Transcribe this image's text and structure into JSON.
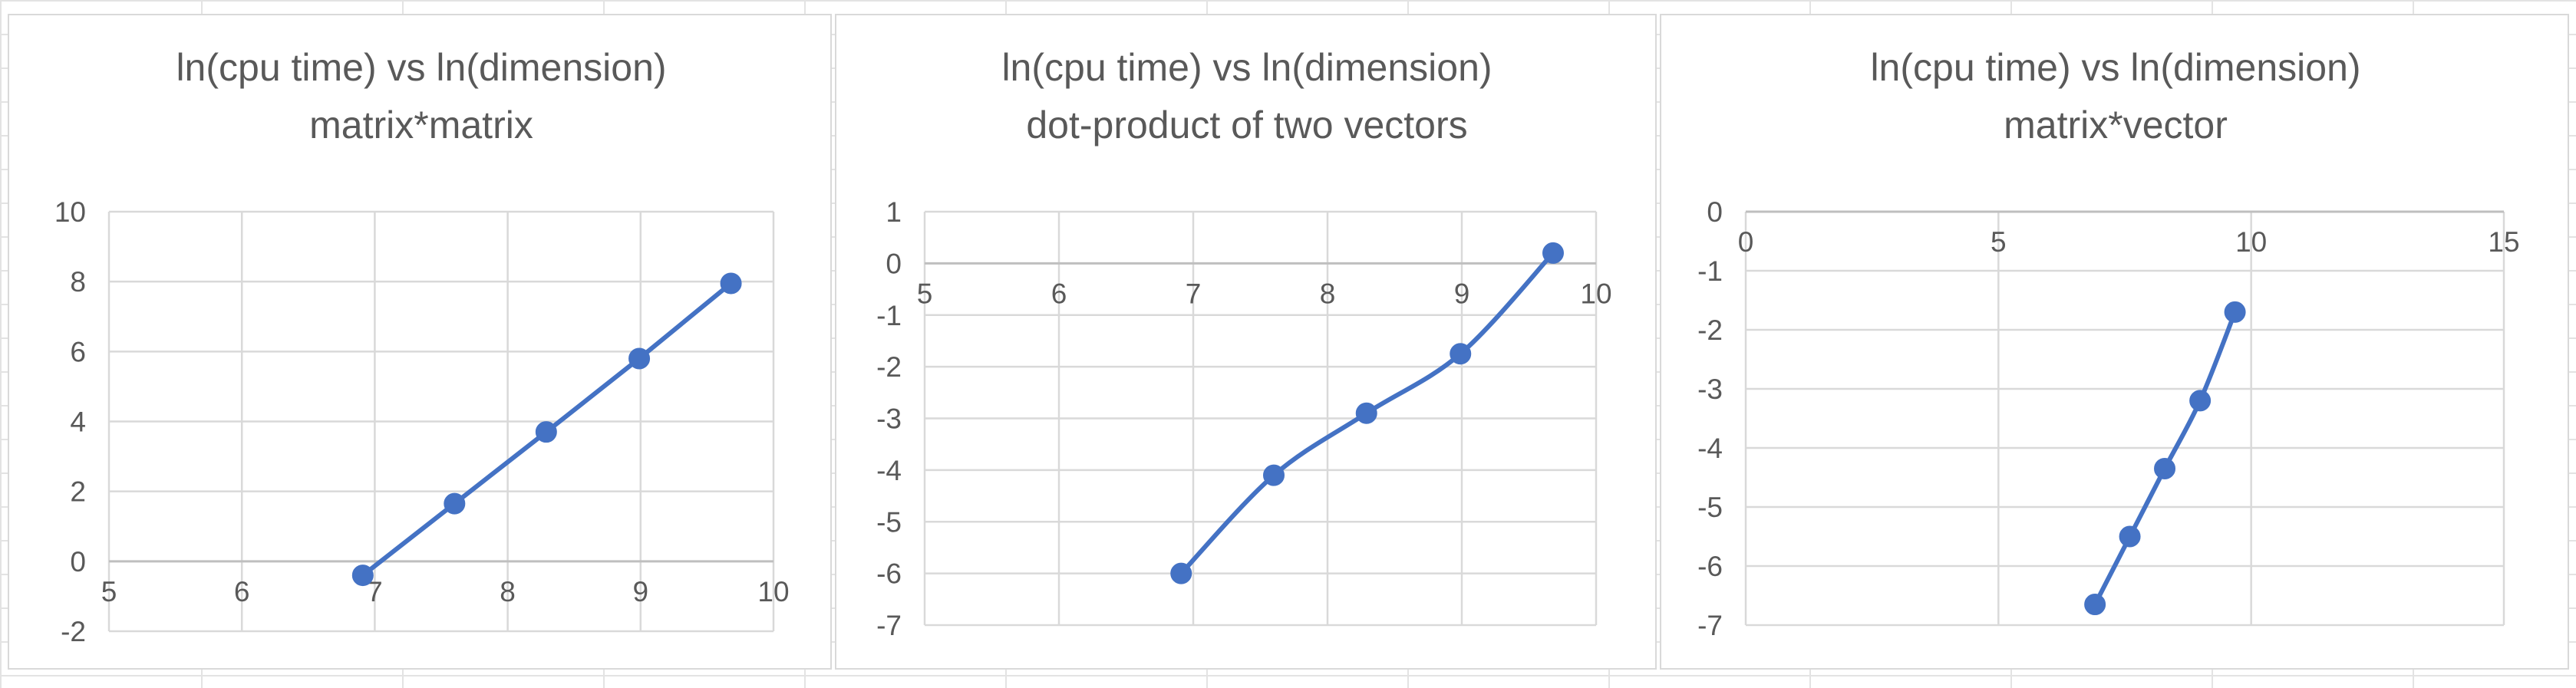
{
  "chart_data": [
    {
      "type": "line",
      "title": "ln(cpu time) vs ln(dimension)",
      "subtitle": "matrix*matrix",
      "xlim": [
        5,
        10
      ],
      "ylim": [
        -2,
        10
      ],
      "x_ticks": [
        5,
        6,
        7,
        8,
        9,
        10
      ],
      "y_ticks": [
        -2,
        0,
        2,
        4,
        6,
        8,
        10
      ],
      "grid": true,
      "smooth": false,
      "series": [
        {
          "x": [
            6.91,
            7.6,
            8.29,
            8.99,
            9.68
          ],
          "y": [
            -0.4,
            1.65,
            3.7,
            5.8,
            7.95
          ]
        }
      ]
    },
    {
      "type": "line",
      "title": "ln(cpu time) vs ln(dimension)",
      "subtitle": "dot-product of two vectors",
      "xlim": [
        5,
        10
      ],
      "ylim": [
        -7,
        1
      ],
      "x_ticks": [
        5,
        6,
        7,
        8,
        9,
        10
      ],
      "y_ticks": [
        -7,
        -6,
        -5,
        -4,
        -3,
        -2,
        -1,
        0,
        1
      ],
      "grid": true,
      "smooth": true,
      "series": [
        {
          "x": [
            6.91,
            7.6,
            8.29,
            8.99,
            9.68
          ],
          "y": [
            -6.0,
            -4.1,
            -2.9,
            -1.75,
            0.2
          ]
        }
      ]
    },
    {
      "type": "line",
      "title": "ln(cpu time) vs ln(dimension)",
      "subtitle": "matrix*vector",
      "xlim": [
        0,
        15
      ],
      "ylim": [
        -7,
        0
      ],
      "x_ticks": [
        0,
        5,
        10,
        15
      ],
      "y_ticks": [
        -7,
        -6,
        -5,
        -4,
        -3,
        -2,
        -1,
        0
      ],
      "grid": true,
      "smooth": true,
      "series": [
        {
          "x": [
            6.91,
            7.6,
            8.29,
            8.99,
            9.68
          ],
          "y": [
            -6.65,
            -5.5,
            -4.35,
            -3.2,
            -1.7
          ]
        }
      ]
    }
  ]
}
